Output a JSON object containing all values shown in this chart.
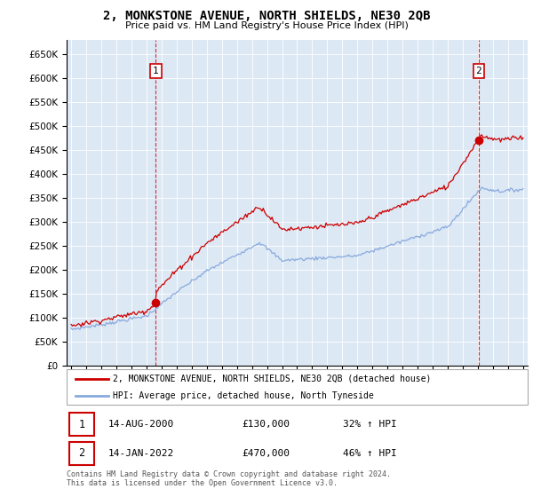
{
  "title": "2, MONKSTONE AVENUE, NORTH SHIELDS, NE30 2QB",
  "subtitle": "Price paid vs. HM Land Registry's House Price Index (HPI)",
  "ylabel_ticks": [
    "£0",
    "£50K",
    "£100K",
    "£150K",
    "£200K",
    "£250K",
    "£300K",
    "£350K",
    "£400K",
    "£450K",
    "£500K",
    "£550K",
    "£600K",
    "£650K"
  ],
  "ytick_values": [
    0,
    50000,
    100000,
    150000,
    200000,
    250000,
    300000,
    350000,
    400000,
    450000,
    500000,
    550000,
    600000,
    650000
  ],
  "ylim": [
    0,
    680000
  ],
  "xlim_start": 1994.7,
  "xlim_end": 2025.3,
  "legend_line1": "2, MONKSTONE AVENUE, NORTH SHIELDS, NE30 2QB (detached house)",
  "legend_line2": "HPI: Average price, detached house, North Tyneside",
  "transaction1_label": "1",
  "transaction1_date": "14-AUG-2000",
  "transaction1_price": "£130,000",
  "transaction1_hpi": "32% ↑ HPI",
  "transaction2_label": "2",
  "transaction2_date": "14-JAN-2022",
  "transaction2_price": "£470,000",
  "transaction2_hpi": "46% ↑ HPI",
  "footer": "Contains HM Land Registry data © Crown copyright and database right 2024.\nThis data is licensed under the Open Government Licence v3.0.",
  "property_color": "#cc0000",
  "hpi_color": "#88aadd",
  "background_color": "#ffffff",
  "chart_bg_color": "#dde8f5",
  "grid_color": "#ffffff",
  "transaction1_x": 2000.62,
  "transaction1_y": 130000,
  "transaction2_x": 2022.04,
  "transaction2_y": 470000
}
